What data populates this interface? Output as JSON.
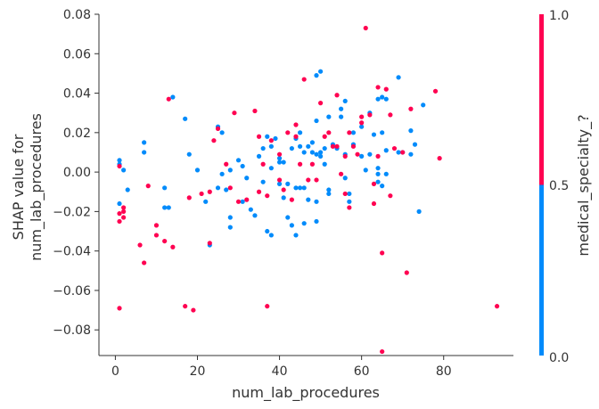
{
  "chart_data": {
    "type": "scatter",
    "xlabel": "num_lab_procedures",
    "ylabel_lines": [
      "SHAP value for",
      "num_lab_procedures"
    ],
    "xlim": [
      -4,
      97
    ],
    "ylim": [
      -0.093,
      0.08
    ],
    "x_ticks": [
      0,
      20,
      40,
      60,
      80
    ],
    "x_tick_labels": [
      "0",
      "20",
      "40",
      "60",
      "80"
    ],
    "y_ticks": [
      -0.08,
      -0.06,
      -0.04,
      -0.02,
      0.0,
      0.02,
      0.04,
      0.06,
      0.08
    ],
    "y_tick_labels": [
      "−0.08",
      "−0.06",
      "−0.04",
      "−0.02",
      "0.00",
      "0.02",
      "0.04",
      "0.06",
      "0.08"
    ],
    "grid": false,
    "colorbar": {
      "label": "medical_specialty_?",
      "min_label": "0.0",
      "mid_label": "0.5",
      "max_label": "1.0",
      "low_color": "#008bfb",
      "high_color": "#ff0051"
    },
    "series": [
      {
        "color_value": 0,
        "color": "#008bfb",
        "points": [
          [
            1,
            0.006
          ],
          [
            1,
            0.004
          ],
          [
            1,
            -0.016
          ],
          [
            2,
            0.001
          ],
          [
            3,
            -0.009
          ],
          [
            7,
            0.015
          ],
          [
            7,
            0.01
          ],
          [
            12,
            -0.008
          ],
          [
            12,
            -0.018
          ],
          [
            13,
            -0.018
          ],
          [
            14,
            0.038
          ],
          [
            17,
            0.027
          ],
          [
            18,
            0.009
          ],
          [
            20,
            0.001
          ],
          [
            22,
            -0.015
          ],
          [
            23,
            -0.037
          ],
          [
            25,
            -0.008
          ],
          [
            25,
            0.023
          ],
          [
            26,
            0.02
          ],
          [
            26,
            -0.001
          ],
          [
            27,
            -0.009
          ],
          [
            28,
            -0.023
          ],
          [
            28,
            -0.028
          ],
          [
            28,
            0.001
          ],
          [
            30,
            0.006
          ],
          [
            31,
            0.003
          ],
          [
            31,
            -0.015
          ],
          [
            32,
            -0.003
          ],
          [
            33,
            -0.019
          ],
          [
            34,
            -0.022
          ],
          [
            35,
            0.008
          ],
          [
            36,
            0.012
          ],
          [
            36,
            -0.005
          ],
          [
            37,
            0.018
          ],
          [
            37,
            -0.03
          ],
          [
            38,
            -0.032
          ],
          [
            38,
            0.013
          ],
          [
            38,
            0.002
          ],
          [
            39,
            0.017
          ],
          [
            40,
            0.007
          ],
          [
            40,
            0.005
          ],
          [
            40,
            -0.006
          ],
          [
            41,
            0.005
          ],
          [
            41,
            -0.013
          ],
          [
            42,
            -0.006
          ],
          [
            42,
            -0.023
          ],
          [
            43,
            -0.027
          ],
          [
            43,
            0.012
          ],
          [
            44,
            0.017
          ],
          [
            44,
            -0.032
          ],
          [
            44,
            -0.008
          ],
          [
            45,
            0.02
          ],
          [
            45,
            0.013
          ],
          [
            45,
            -0.008
          ],
          [
            46,
            0.01
          ],
          [
            46,
            -0.026
          ],
          [
            46,
            -0.008
          ],
          [
            47,
            -0.014
          ],
          [
            47,
            0.013
          ],
          [
            48,
            0.015
          ],
          [
            48,
            0.01
          ],
          [
            49,
            0.009
          ],
          [
            49,
            -0.015
          ],
          [
            49,
            -0.025
          ],
          [
            49,
            0.049
          ],
          [
            49,
            0.026
          ],
          [
            50,
            0.051
          ],
          [
            50,
            0.008
          ],
          [
            50,
            0.01
          ],
          [
            51,
            0.012
          ],
          [
            51,
            0.004
          ],
          [
            52,
            -0.009
          ],
          [
            52,
            -0.011
          ],
          [
            52,
            0.028
          ],
          [
            53,
            0.014
          ],
          [
            54,
            0.012
          ],
          [
            55,
            0.028
          ],
          [
            55,
            0.032
          ],
          [
            56,
            0.036
          ],
          [
            56,
            0.009
          ],
          [
            56,
            -0.003
          ],
          [
            57,
            -0.011
          ],
          [
            57,
            -0.015
          ],
          [
            58,
            0.014
          ],
          [
            58,
            0.02
          ],
          [
            60,
            0.008
          ],
          [
            60,
            0.023
          ],
          [
            61,
            0.001
          ],
          [
            62,
            0.009
          ],
          [
            62,
            0.03
          ],
          [
            63,
            0.019
          ],
          [
            64,
            -0.005
          ],
          [
            64,
            0.002
          ],
          [
            64,
            -0.001
          ],
          [
            64,
            0.037
          ],
          [
            65,
            0.02
          ],
          [
            65,
            -0.007
          ],
          [
            65,
            0.038
          ],
          [
            66,
            0.037
          ],
          [
            66,
            0.011
          ],
          [
            66,
            -0.001
          ],
          [
            69,
            0.048
          ],
          [
            69,
            0.01
          ],
          [
            70,
            0.01
          ],
          [
            72,
            0.021
          ],
          [
            72,
            0.009
          ],
          [
            73,
            0.014
          ],
          [
            74,
            -0.02
          ],
          [
            75,
            0.034
          ]
        ]
      },
      {
        "color_value": 1,
        "color": "#ff0051",
        "points": [
          [
            1,
            0.003
          ],
          [
            1,
            -0.021
          ],
          [
            1,
            -0.025
          ],
          [
            1,
            -0.069
          ],
          [
            2,
            -0.02
          ],
          [
            2,
            -0.018
          ],
          [
            2,
            -0.023
          ],
          [
            6,
            -0.037
          ],
          [
            7,
            -0.046
          ],
          [
            8,
            -0.007
          ],
          [
            10,
            -0.027
          ],
          [
            10,
            -0.032
          ],
          [
            12,
            -0.035
          ],
          [
            13,
            0.037
          ],
          [
            14,
            -0.038
          ],
          [
            17,
            -0.068
          ],
          [
            18,
            -0.013
          ],
          [
            19,
            -0.07
          ],
          [
            21,
            -0.011
          ],
          [
            23,
            -0.01
          ],
          [
            23,
            -0.036
          ],
          [
            24,
            0.016
          ],
          [
            25,
            0.022
          ],
          [
            27,
            0.004
          ],
          [
            28,
            -0.008
          ],
          [
            29,
            0.03
          ],
          [
            30,
            -0.015
          ],
          [
            32,
            -0.014
          ],
          [
            34,
            0.031
          ],
          [
            35,
            0.018
          ],
          [
            35,
            -0.01
          ],
          [
            36,
            0.004
          ],
          [
            37,
            -0.068
          ],
          [
            37,
            -0.012
          ],
          [
            38,
            0.016
          ],
          [
            40,
            0.009
          ],
          [
            40,
            -0.004
          ],
          [
            41,
            -0.009
          ],
          [
            42,
            0.02
          ],
          [
            43,
            -0.014
          ],
          [
            44,
            0.024
          ],
          [
            44,
            0.018
          ],
          [
            45,
            0.004
          ],
          [
            46,
            0.047
          ],
          [
            47,
            -0.004
          ],
          [
            48,
            0.004
          ],
          [
            49,
            -0.004
          ],
          [
            50,
            0.035
          ],
          [
            51,
            0.018
          ],
          [
            52,
            0.02
          ],
          [
            53,
            0.013
          ],
          [
            54,
            0.013
          ],
          [
            54,
            0.039
          ],
          [
            55,
            -0.001
          ],
          [
            56,
            -0.011
          ],
          [
            56,
            0.008
          ],
          [
            57,
            -0.018
          ],
          [
            57,
            0.02
          ],
          [
            58,
            0.013
          ],
          [
            59,
            0.009
          ],
          [
            60,
            0.025
          ],
          [
            60,
            0.028
          ],
          [
            61,
            0.073
          ],
          [
            62,
            0.029
          ],
          [
            63,
            -0.016
          ],
          [
            63,
            -0.006
          ],
          [
            64,
            0.008
          ],
          [
            64,
            0.043
          ],
          [
            65,
            -0.041
          ],
          [
            65,
            -0.091
          ],
          [
            66,
            0.042
          ],
          [
            67,
            -0.012
          ],
          [
            67,
            0.029
          ],
          [
            68,
            0.012
          ],
          [
            70,
            0.01
          ],
          [
            71,
            -0.051
          ],
          [
            72,
            0.032
          ],
          [
            78,
            0.041
          ],
          [
            79,
            0.007
          ],
          [
            93,
            -0.068
          ]
        ]
      }
    ]
  }
}
